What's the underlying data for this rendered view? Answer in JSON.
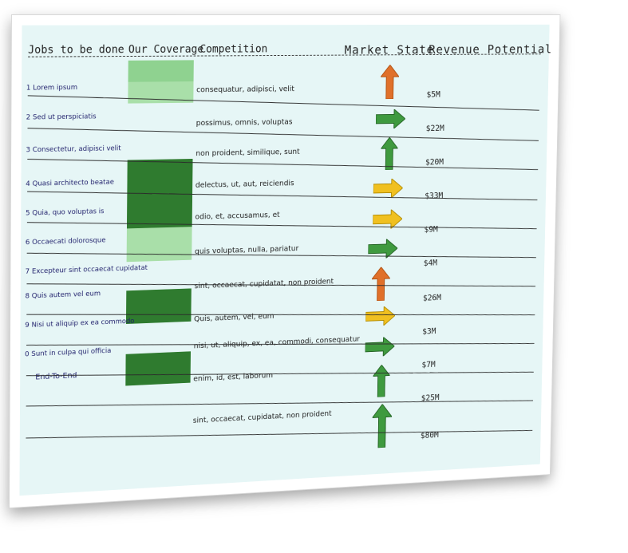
{
  "headers": {
    "jobs": "Jobs to be done",
    "coverage": "Our Coverage",
    "competition": "Competition",
    "market_state": "Market State",
    "revenue": "Revenue Potential"
  },
  "colors": {
    "arrow_orange": "#e0702a",
    "arrow_green": "#3f9a3f",
    "arrow_yellow": "#f0c020",
    "coverage_dark": "#2f7b2f",
    "coverage_light": "#a9dfa9"
  },
  "rows": [
    {
      "num": "1",
      "job": "Lorem ipsum",
      "competition": "consequatur, adipisci, velit",
      "revenue": "$5M",
      "arrow": "up",
      "color": "orange"
    },
    {
      "num": "2",
      "job": "Sed ut perspiciatis",
      "competition": "possimus, omnis, voluptas",
      "revenue": "$22M",
      "arrow": "right",
      "color": "green"
    },
    {
      "num": "3",
      "job": "Consectetur, adipisci velit",
      "competition": "non proident, similique, sunt",
      "revenue": "$20M",
      "arrow": "up",
      "color": "green"
    },
    {
      "num": "4",
      "job": "Quasi architecto beatae",
      "competition": "delectus, ut, aut, reiciendis",
      "revenue": "$33M",
      "arrow": "right",
      "color": "yellow"
    },
    {
      "num": "5",
      "job": "Quia, quo voluptas is",
      "competition": "odio, et, accusamus, et",
      "revenue": "$9M",
      "arrow": "right",
      "color": "yellow"
    },
    {
      "num": "6",
      "job": "Occaecati dolorosque",
      "competition": "quis voluptas, nulla, pariatur",
      "revenue": "$4M",
      "arrow": "right",
      "color": "green"
    },
    {
      "num": "7",
      "job": "Excepteur sint occaecat cupidatat",
      "competition": "sint, occaecat, cupidatat, non proident",
      "revenue": "$26M",
      "arrow": "up",
      "color": "orange"
    },
    {
      "num": "8",
      "job": "Quis autem vel eum",
      "competition": "Quis, autem, vel, eum",
      "revenue": "$3M",
      "arrow": "right",
      "color": "yellow"
    },
    {
      "num": "9",
      "job": "Nisi ut aliquip ex ea commodo",
      "competition": "nisi, ut, aliquip, ex, ea, commodi, consequatur",
      "revenue": "$7M",
      "arrow": "right",
      "color": "green"
    },
    {
      "num": "0",
      "job": "Sunt in culpa qui officia",
      "competition": "enim, id, est, laborum",
      "revenue": "$25M",
      "arrow": "up",
      "color": "green"
    }
  ],
  "end_to_end": {
    "label": "End-To-End",
    "competition": "sint, occaecat, cupidatat, non proident",
    "revenue": "$80M",
    "arrow": "up",
    "color": "green"
  }
}
